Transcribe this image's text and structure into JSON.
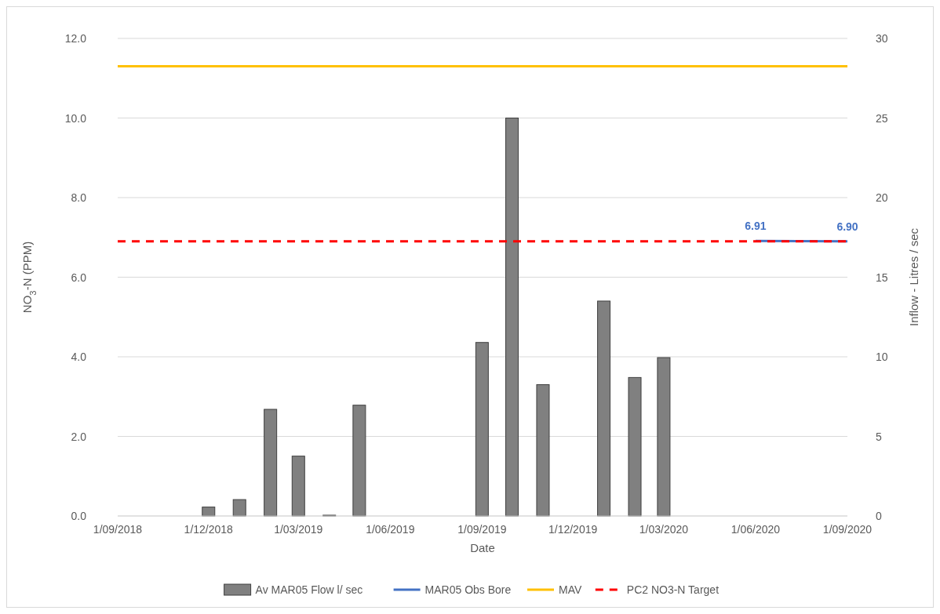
{
  "chart_data": {
    "type": "bar",
    "xlabel": "Date",
    "ylabel": "NO$_{3}$-N (PPM)",
    "y2label": "Inflow - Litres / sec",
    "xlim": [
      "2018-09-01",
      "2020-09-01"
    ],
    "xticks": [
      {
        "value": "2018-09-01",
        "label": "1/09/2018"
      },
      {
        "value": "2018-12-01",
        "label": "1/12/2018"
      },
      {
        "value": "2019-03-01",
        "label": "1/03/2019"
      },
      {
        "value": "2019-06-01",
        "label": "1/06/2019"
      },
      {
        "value": "2019-09-01",
        "label": "1/09/2019"
      },
      {
        "value": "2019-12-01",
        "label": "1/12/2019"
      },
      {
        "value": "2020-03-01",
        "label": "1/03/2020"
      },
      {
        "value": "2020-06-01",
        "label": "1/06/2020"
      },
      {
        "value": "2020-09-01",
        "label": "1/09/2020"
      }
    ],
    "ylim": [
      0,
      12
    ],
    "yticks": [
      {
        "value": 0,
        "label": "0.0"
      },
      {
        "value": 2,
        "label": "2.0"
      },
      {
        "value": 4,
        "label": "4.0"
      },
      {
        "value": 6,
        "label": "6.0"
      },
      {
        "value": 8,
        "label": "8.0"
      },
      {
        "value": 10,
        "label": "10.0"
      },
      {
        "value": 12,
        "label": "12.0"
      }
    ],
    "y2lim": [
      0,
      30
    ],
    "y2ticks": [
      0,
      5,
      10,
      15,
      20,
      25,
      30
    ],
    "grid": "y",
    "legend": "bottom",
    "series": [
      {
        "name": "Av MAR05 Flow l/ sec",
        "axis": "y2",
        "color": "#808080",
        "x": [
          "2018-12-01",
          "2019-01-01",
          "2019-02-01",
          "2019-03-01",
          "2019-04-01",
          "2019-05-01",
          "2019-09-01",
          "2019-10-01",
          "2019-11-01",
          "2020-01-01",
          "2020-02-01",
          "2020-03-01"
        ],
        "values": [
          0.56,
          1.03,
          6.7,
          3.76,
          0.05,
          6.96,
          10.9,
          25.0,
          8.25,
          13.5,
          8.7,
          9.95
        ]
      },
      {
        "name": "MAR05 Obs Bore",
        "type": "line",
        "axis": "y",
        "color": "#4472c4",
        "line_style": "solid",
        "x": [
          "2020-06-01",
          "2020-09-01"
        ],
        "values": [
          6.91,
          6.9
        ],
        "value_labels": [
          "6.91",
          "6.90"
        ]
      },
      {
        "name": "MAV",
        "type": "line",
        "axis": "y",
        "color": "#ffc000",
        "line_style": "solid",
        "x": [
          "2018-09-01",
          "2020-09-01"
        ],
        "values": [
          11.3,
          11.3
        ]
      },
      {
        "name": "PC2 NO3-N Target",
        "type": "line",
        "axis": "y",
        "color": "#ff0000",
        "line_style": "dashed",
        "x": [
          "2018-09-01",
          "2020-09-01"
        ],
        "values": [
          6.9,
          6.9
        ]
      }
    ]
  }
}
